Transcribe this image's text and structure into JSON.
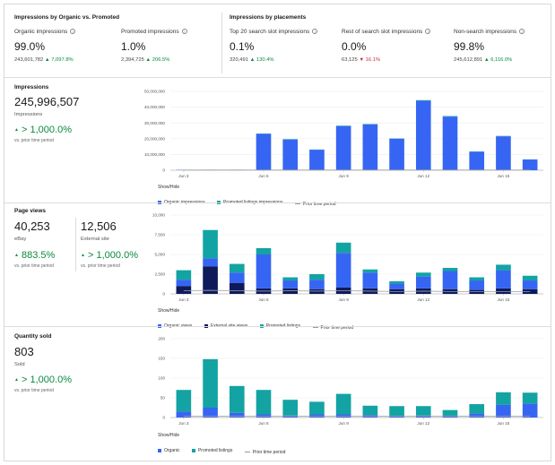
{
  "colors": {
    "organic": "#3665f3",
    "promoted": "#13a3a3",
    "external": "#0e1a5a",
    "prior": "#9aa0a6",
    "up": "#0a8a3f",
    "down": "#c8283a"
  },
  "top": {
    "organic_vs_promoted_title": "Impressions by Organic vs. Promoted",
    "placements_title": "Impressions by placements",
    "metrics": [
      {
        "label": "Organic impressions",
        "value": "99.0%",
        "count": "243,601,782",
        "change": "7,097.8%",
        "direction": "up"
      },
      {
        "label": "Promoted impressions",
        "value": "1.0%",
        "count": "2,394,725",
        "change": "206.5%",
        "direction": "up"
      },
      {
        "label": "Top 20 search slot impressions",
        "value": "0.1%",
        "count": "320,491",
        "change": "130.4%",
        "direction": "up"
      },
      {
        "label": "Rest of search slot impressions",
        "value": "0.0%",
        "count": "63,125",
        "change": "16.1%",
        "direction": "down"
      },
      {
        "label": "Non-search impressions",
        "value": "99.8%",
        "count": "245,612,891",
        "change": "6,116.0%",
        "direction": "up"
      }
    ]
  },
  "impressions": {
    "title": "Impressions",
    "value": "245,996,507",
    "sublabel": "Impressions",
    "change": "> 1,000.0%",
    "change_prefix": "▲",
    "period": "vs. prior time period",
    "show_hide": "Show/Hide",
    "legend": [
      "Organic impressions",
      "Promoted listings impressions",
      "Prior time period"
    ]
  },
  "page_views": {
    "title": "Page views",
    "ebay_value": "40,253",
    "ebay_label": "eBay",
    "ebay_change": "883.5%",
    "external_value": "12,506",
    "external_label": "External site",
    "external_change": "> 1,000.0%",
    "change_prefix": "▲",
    "period": "vs. prior time period",
    "show_hide": "Show/Hide",
    "legend": [
      "Organic views",
      "External site views",
      "Promoted listings",
      "Prior time period"
    ]
  },
  "quantity": {
    "title": "Quantity sold",
    "value": "803",
    "sublabel": "Sold",
    "change": "> 1,000.0%",
    "change_prefix": "▲",
    "period": "vs. prior time period",
    "show_hide": "Show/Hide",
    "legend": [
      "Organic",
      "Promoted listings",
      "Prior time period"
    ]
  },
  "chart_data": [
    {
      "type": "bar",
      "title": "Impressions",
      "categories": [
        "Jun 3",
        "Jun 4",
        "Jun 5",
        "Jun 6",
        "Jun 7",
        "Jun 8",
        "Jun 9",
        "Jun 10",
        "Jun 11",
        "Jun 12",
        "Jun 13",
        "Jun 14",
        "Jun 15",
        "Jun 16"
      ],
      "x_tick_labels": [
        "Jun 3",
        "Jun 6",
        "Jun 9",
        "Jun 12",
        "Jun 15"
      ],
      "y_ticks": [
        "50,000,000",
        "40,000,000",
        "30,000,000",
        "20,000,000",
        "10,000,000",
        "0"
      ],
      "ylim": [
        0,
        50000000
      ],
      "series": [
        {
          "name": "Organic impressions",
          "values": [
            200000,
            300000,
            300000,
            23000000,
            19500000,
            13000000,
            28000000,
            29000000,
            20000000,
            44000000,
            34000000,
            11800000,
            21500000,
            6800000
          ]
        },
        {
          "name": "Promoted listings impressions",
          "values": [
            20000,
            20000,
            20000,
            250000,
            250000,
            150000,
            300000,
            300000,
            200000,
            450000,
            350000,
            150000,
            250000,
            80000
          ]
        }
      ],
      "prior": [
        100000,
        100000,
        100000,
        100000,
        100000,
        100000,
        100000,
        100000,
        100000,
        100000,
        100000,
        100000,
        100000,
        100000
      ]
    },
    {
      "type": "bar",
      "title": "Page views",
      "categories": [
        "Jun 3",
        "Jun 4",
        "Jun 5",
        "Jun 6",
        "Jun 7",
        "Jun 8",
        "Jun 9",
        "Jun 10",
        "Jun 11",
        "Jun 12",
        "Jun 13",
        "Jun 14",
        "Jun 15",
        "Jun 16"
      ],
      "x_tick_labels": [
        "Jun 3",
        "Jun 6",
        "Jun 9",
        "Jun 12",
        "Jun 15"
      ],
      "y_ticks": [
        "10,000",
        "7,500",
        "5,000",
        "2,500",
        "0"
      ],
      "ylim": [
        0,
        10000
      ],
      "series": [
        {
          "name": "External site views",
          "values": [
            1000,
            3500,
            1400,
            700,
            700,
            600,
            800,
            700,
            600,
            700,
            600,
            500,
            700,
            600
          ]
        },
        {
          "name": "Organic views",
          "values": [
            800,
            1000,
            1300,
            4300,
            1000,
            1200,
            4400,
            2000,
            700,
            1500,
            2300,
            1200,
            2300,
            1100
          ]
        },
        {
          "name": "Promoted listings",
          "values": [
            1200,
            3600,
            1100,
            800,
            400,
            700,
            1300,
            400,
            300,
            500,
            400,
            400,
            700,
            600
          ]
        }
      ],
      "prior": [
        400,
        450,
        400,
        350,
        400,
        350,
        400,
        350,
        300,
        350,
        300,
        300,
        300,
        300
      ]
    },
    {
      "type": "bar",
      "title": "Quantity sold",
      "categories": [
        "Jun 3",
        "Jun 4",
        "Jun 5",
        "Jun 6",
        "Jun 7",
        "Jun 8",
        "Jun 9",
        "Jun 10",
        "Jun 11",
        "Jun 12",
        "Jun 13",
        "Jun 14",
        "Jun 15",
        "Jun 16"
      ],
      "x_tick_labels": [
        "Jun 3",
        "Jun 6",
        "Jun 9",
        "Jun 12",
        "Jun 15"
      ],
      "y_ticks": [
        "200",
        "150",
        "100",
        "50",
        "0"
      ],
      "ylim": [
        0,
        200
      ],
      "series": [
        {
          "name": "Organic",
          "values": [
            15,
            25,
            12,
            8,
            5,
            8,
            8,
            6,
            4,
            5,
            3,
            10,
            32,
            35
          ]
        },
        {
          "name": "Promoted listings",
          "values": [
            55,
            123,
            68,
            62,
            40,
            32,
            52,
            24,
            25,
            24,
            16,
            24,
            32,
            28
          ]
        }
      ],
      "prior": [
        3,
        3,
        3,
        3,
        3,
        3,
        3,
        3,
        3,
        3,
        3,
        3,
        3,
        3
      ]
    }
  ]
}
